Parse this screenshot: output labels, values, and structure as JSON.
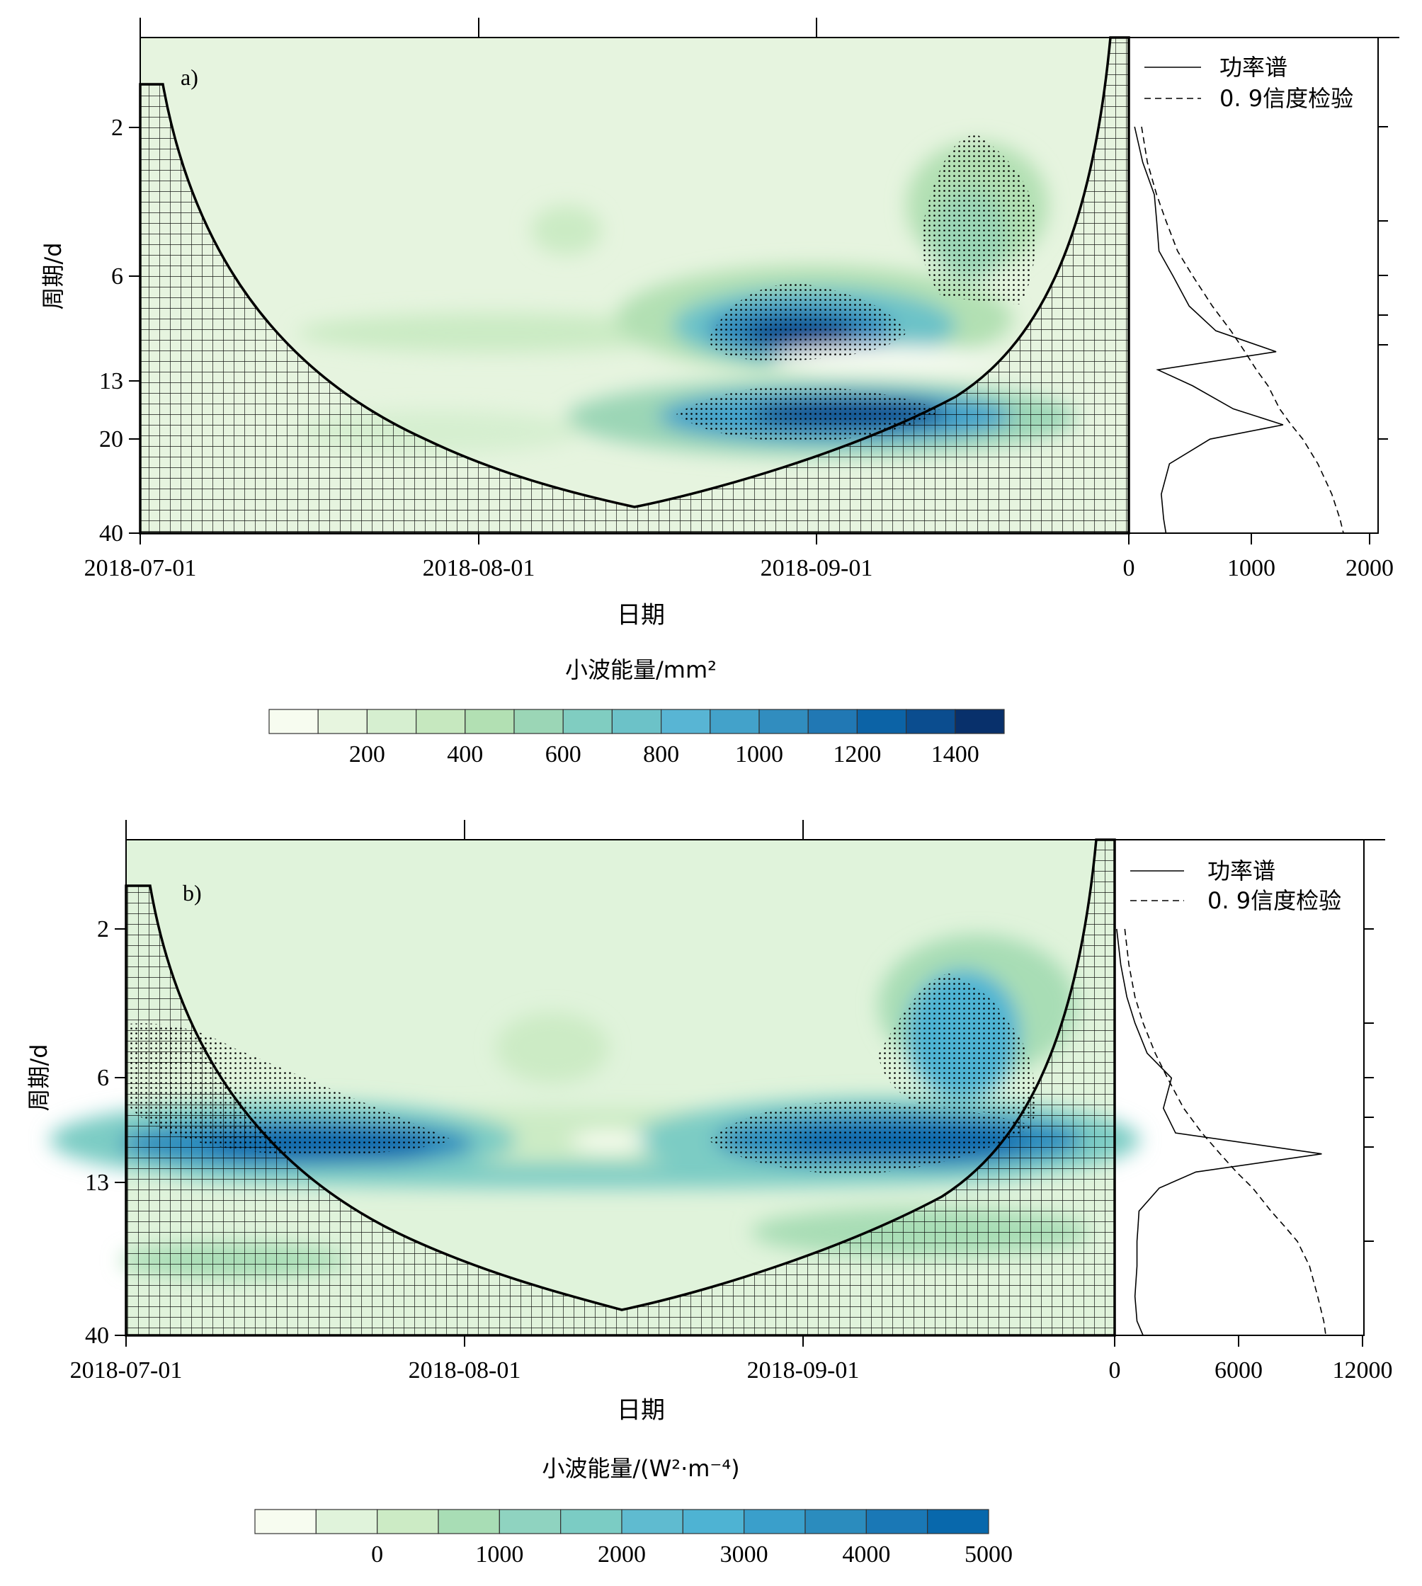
{
  "panels": [
    {
      "id": "a",
      "label": "a)",
      "ylabel": "周期/d",
      "xlabel": "日期",
      "x_ticks": [
        "2018-07-01",
        "2018-08-01",
        "2018-09-01"
      ],
      "y_ticks": [
        "2",
        "6",
        "13",
        "20",
        "40"
      ],
      "spectrum_ticks": [
        "0",
        "1000",
        "2000"
      ],
      "spectrum_max": 2100,
      "legend": {
        "solid": "功率谱",
        "dashed": "0. 9信度检验"
      },
      "colorbar_title": "小波能量/mm²",
      "colorbar_ticks": [
        "200",
        "400",
        "600",
        "800",
        "1000",
        "1200",
        "1400"
      ],
      "colorbar_colors": [
        "#f7fcf0",
        "#e7f5df",
        "#d6efd0",
        "#c6e8bf",
        "#b2e0b3",
        "#9bd6b6",
        "#80cdc1",
        "#6cc2c8",
        "#58b5d4",
        "#43a2ca",
        "#318dbf",
        "#2178b4",
        "#0c63a6",
        "#0b4d8f",
        "#08306b"
      ],
      "chart_data": {
        "type": "heatmap",
        "x_axis": "date 2018-07-01 .. 2018-10-01",
        "y_axis": "period (d), log scale, 2..40 (inverted)",
        "power_spectrum": {
          "period_d": [
            2,
            2.6,
            3.3,
            4,
            5,
            6,
            7.5,
            9,
            10.5,
            12,
            13.5,
            16,
            18,
            20,
            24,
            30,
            36,
            40
          ],
          "power": [
            50,
            120,
            220,
            240,
            260,
            380,
            520,
            750,
            1270,
            250,
            550,
            900,
            1330,
            700,
            350,
            280,
            300,
            320
          ],
          "significance_0_9": [
            110,
            160,
            240,
            320,
            420,
            550,
            720,
            880,
            1000,
            1100,
            1200,
            1300,
            1400,
            1500,
            1630,
            1750,
            1820,
            1850
          ]
        },
        "energy_peaks": [
          {
            "date": "2018-08-28",
            "period_d": 9,
            "value": 1400
          },
          {
            "date": "2018-08-31",
            "period_d": 17,
            "value": 1600
          },
          {
            "date": "2018-09-13",
            "period_d": 4,
            "value": 700
          }
        ]
      }
    },
    {
      "id": "b",
      "label": "b)",
      "ylabel": "周期/d",
      "xlabel": "日期",
      "x_ticks": [
        "2018-07-01",
        "2018-08-01",
        "2018-09-01"
      ],
      "y_ticks": [
        "2",
        "6",
        "13",
        "40"
      ],
      "spectrum_ticks": [
        "0",
        "6000",
        "12000"
      ],
      "spectrum_max": 12000,
      "legend": {
        "solid": "功率谱",
        "dashed": "0. 9信度检验"
      },
      "colorbar_title": "小波能量/(W²·m⁻⁴)",
      "colorbar_ticks": [
        "0",
        "1000",
        "2000",
        "3000",
        "4000",
        "5000"
      ],
      "colorbar_colors": [
        "#f7fcf0",
        "#e0f3db",
        "#ccebc5",
        "#a8ddb5",
        "#8fd3c0",
        "#7bccc4",
        "#5fbbd0",
        "#4eb3d3",
        "#3a9fcb",
        "#2b8cbe",
        "#1a78b6",
        "#0868ac"
      ],
      "chart_data": {
        "type": "heatmap",
        "x_axis": "date 2018-07-01 .. 2018-10-01",
        "y_axis": "period (d), log scale, 2..40 (inverted)",
        "power_spectrum": {
          "period_d": [
            2,
            2.6,
            3.3,
            4,
            5,
            6,
            7.5,
            9,
            10.5,
            12,
            13.5,
            16,
            18,
            20,
            24,
            30,
            36,
            40
          ],
          "power": [
            100,
            300,
            600,
            1000,
            1600,
            2800,
            2400,
            3000,
            10200,
            4000,
            2200,
            1200,
            1150,
            1100,
            1100,
            1000,
            1100,
            1400
          ],
          "significance_0_9": [
            500,
            700,
            1000,
            1400,
            2000,
            2600,
            3400,
            4300,
            5200,
            6000,
            6800,
            7700,
            8400,
            9000,
            9600,
            10000,
            10300,
            10400
          ]
        },
        "energy_peaks": [
          {
            "date": "2018-07-16",
            "period_d": 10,
            "value": 4500
          },
          {
            "date": "2018-09-08",
            "period_d": 10,
            "value": 5500
          },
          {
            "date": "2018-09-13",
            "period_d": 6,
            "value": 4000
          }
        ]
      }
    }
  ]
}
